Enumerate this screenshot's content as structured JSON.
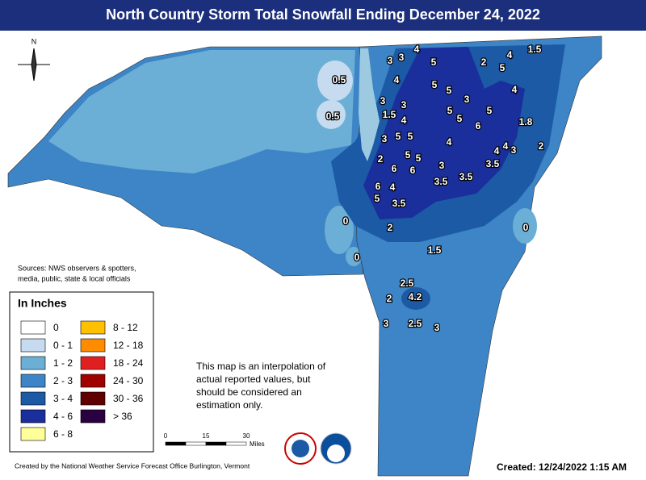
{
  "title": "North Country Storm Total Snowfall Ending December 24, 2022",
  "compass": "N",
  "sources": [
    "Sources: NWS observers & spotters,",
    "media, public, state & local officials"
  ],
  "legend": {
    "title": "In Inches",
    "items": [
      {
        "label": "0",
        "color": "#ffffff"
      },
      {
        "label": "0 - 1",
        "color": "#c6dbef"
      },
      {
        "label": "1 - 2",
        "color": "#6baed6"
      },
      {
        "label": "2 - 3",
        "color": "#3d85c6"
      },
      {
        "label": "3 - 4",
        "color": "#1c5aa6"
      },
      {
        "label": "4 - 6",
        "color": "#1a2f9b"
      },
      {
        "label": "6 - 8",
        "color": "#ffff99"
      },
      {
        "label": "8 - 12",
        "color": "#ffc000"
      },
      {
        "label": "12 - 18",
        "color": "#ff8c00"
      },
      {
        "label": "18 - 24",
        "color": "#e02020"
      },
      {
        "label": "24 - 30",
        "color": "#a00000"
      },
      {
        "label": "30 - 36",
        "color": "#600000"
      },
      {
        "label": "> 36",
        "color": "#2b0040"
      }
    ]
  },
  "note": [
    "This map is an interpolation of",
    "actual reported values, but",
    "should be considered an",
    "estimation only."
  ],
  "scale": {
    "ticks": [
      0,
      15,
      30
    ],
    "unit": "Miles"
  },
  "credit": "Created by the National Weather Service Forecast Office Burlington, Vermont",
  "created": "Created: 12/24/2022 1:15 AM",
  "labels": [
    0.5,
    0.5,
    3,
    3,
    4,
    1.5,
    2,
    4,
    5,
    5,
    4,
    3,
    1.5,
    3,
    4,
    5,
    5,
    3,
    4,
    5,
    5,
    5,
    6,
    1.8,
    3,
    5,
    5,
    4,
    4,
    3,
    4,
    2,
    2,
    5,
    5,
    3,
    3.5,
    6,
    6,
    3.5,
    3.5,
    6,
    4,
    5,
    3.5,
    0,
    0,
    2,
    1.5,
    0,
    2.5,
    4.2,
    2,
    3,
    2.5,
    3
  ]
}
